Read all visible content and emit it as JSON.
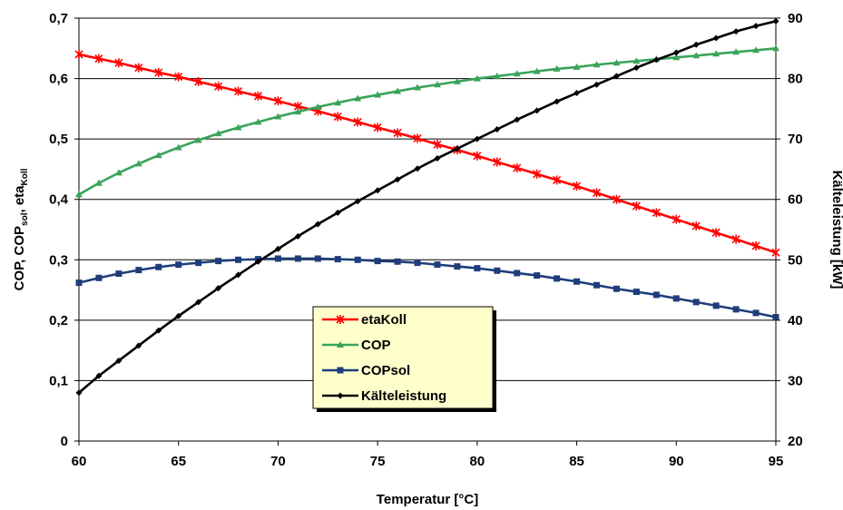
{
  "chart_data": {
    "type": "line",
    "xlabel": "Temperatur [°C]",
    "ylabel_left": "COP, COP",
    "ylabel_left_sub1": "sol",
    "ylabel_left_mid": ", eta",
    "ylabel_left_sub2": "Koll",
    "ylabel_right": "Kälteleistung [kW]",
    "xlim": [
      60,
      95
    ],
    "ylim_left": [
      0,
      0.7
    ],
    "ylim_right": [
      20,
      90
    ],
    "x_ticks": [
      "60",
      "65",
      "70",
      "75",
      "80",
      "85",
      "90",
      "95"
    ],
    "y_left_ticks": [
      "0",
      "0,1",
      "0,2",
      "0,3",
      "0,4",
      "0,5",
      "0,6",
      "0,7"
    ],
    "y_right_ticks": [
      "20",
      "30",
      "40",
      "50",
      "60",
      "70",
      "80",
      "90"
    ],
    "grid": "horizontal",
    "legend_position": "center",
    "x": [
      60,
      61,
      62,
      63,
      64,
      65,
      66,
      67,
      68,
      69,
      70,
      71,
      72,
      73,
      74,
      75,
      76,
      77,
      78,
      79,
      80,
      81,
      82,
      83,
      84,
      85,
      86,
      87,
      88,
      89,
      90,
      91,
      92,
      93,
      94,
      95
    ],
    "series": [
      {
        "name": "etaKoll",
        "axis": "left",
        "color": "#ff0000",
        "marker": "star",
        "values": [
          0.64,
          0.633,
          0.626,
          0.618,
          0.61,
          0.603,
          0.595,
          0.587,
          0.579,
          0.571,
          0.563,
          0.554,
          0.546,
          0.537,
          0.528,
          0.519,
          0.51,
          0.501,
          0.491,
          0.482,
          0.472,
          0.462,
          0.452,
          0.442,
          0.432,
          0.422,
          0.411,
          0.4,
          0.389,
          0.378,
          0.367,
          0.356,
          0.345,
          0.334,
          0.323,
          0.312
        ]
      },
      {
        "name": "COP",
        "axis": "left",
        "color": "#3aa35a",
        "marker": "triangle",
        "values": [
          0.408,
          0.427,
          0.444,
          0.459,
          0.473,
          0.486,
          0.498,
          0.509,
          0.519,
          0.528,
          0.537,
          0.545,
          0.553,
          0.56,
          0.567,
          0.573,
          0.579,
          0.585,
          0.59,
          0.595,
          0.6,
          0.604,
          0.608,
          0.612,
          0.616,
          0.619,
          0.623,
          0.626,
          0.629,
          0.632,
          0.635,
          0.638,
          0.641,
          0.644,
          0.647,
          0.65
        ]
      },
      {
        "name": "COPsol",
        "axis": "left",
        "color": "#1f3d7a",
        "marker": "square",
        "values": [
          0.262,
          0.27,
          0.277,
          0.283,
          0.288,
          0.292,
          0.295,
          0.298,
          0.3,
          0.301,
          0.302,
          0.302,
          0.302,
          0.301,
          0.3,
          0.298,
          0.297,
          0.295,
          0.292,
          0.289,
          0.286,
          0.282,
          0.278,
          0.274,
          0.269,
          0.264,
          0.258,
          0.252,
          0.247,
          0.242,
          0.236,
          0.23,
          0.224,
          0.218,
          0.212,
          0.205
        ]
      },
      {
        "name": "Kälteleistung",
        "axis": "right",
        "color": "#000000",
        "marker": "diamond",
        "values": [
          28.0,
          30.8,
          33.3,
          35.8,
          38.3,
          40.7,
          43.0,
          45.3,
          47.5,
          49.7,
          51.8,
          53.9,
          55.9,
          57.8,
          59.7,
          61.5,
          63.3,
          65.1,
          66.8,
          68.4,
          70.0,
          71.6,
          73.2,
          74.7,
          76.2,
          77.6,
          79.0,
          80.4,
          81.8,
          83.1,
          84.3,
          85.6,
          86.7,
          87.8,
          88.7,
          89.5
        ]
      }
    ]
  },
  "colors": {
    "legend_background": "#ffffcc",
    "legend_shadow": "#000000",
    "grid_line": "#000000",
    "plot_background": "#ffffff"
  }
}
